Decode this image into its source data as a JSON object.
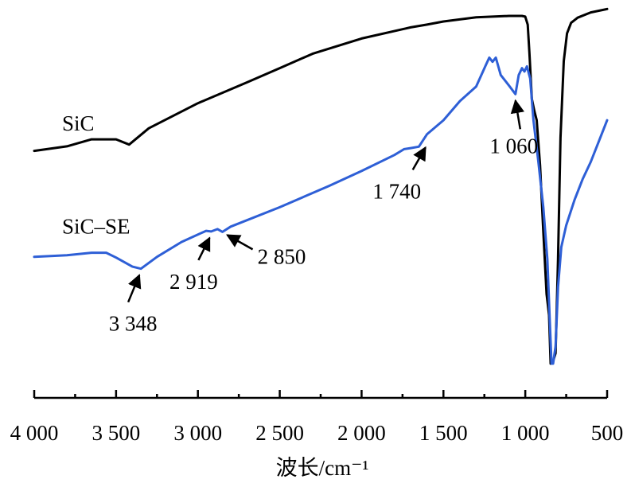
{
  "chart_data": {
    "type": "line",
    "xlabel": "波长/cm⁻¹",
    "xlim": [
      4000,
      500
    ],
    "x_reversed": true,
    "x_tick_values": [
      4000,
      3500,
      3000,
      2500,
      2000,
      1500,
      1000,
      500
    ],
    "x_tick_labels": [
      "4 000",
      "3 500",
      "3 000",
      "2 500",
      "2 000",
      "1 500",
      "1 000",
      "500"
    ],
    "y_axis_shown": false,
    "grid": false,
    "series": [
      {
        "name": "SiC",
        "color": "#000000",
        "points": [
          [
            4000,
            0.612
          ],
          [
            3800,
            0.625
          ],
          [
            3650,
            0.645
          ],
          [
            3500,
            0.645
          ],
          [
            3420,
            0.63
          ],
          [
            3300,
            0.677
          ],
          [
            3000,
            0.749
          ],
          [
            2700,
            0.809
          ],
          [
            2500,
            0.85
          ],
          [
            2300,
            0.891
          ],
          [
            2000,
            0.935
          ],
          [
            1700,
            0.967
          ],
          [
            1600,
            0.975
          ],
          [
            1500,
            0.984
          ],
          [
            1300,
            0.996
          ],
          [
            1100,
            1.0
          ],
          [
            1020,
            1.0
          ],
          [
            1000,
            0.998
          ],
          [
            985,
            0.975
          ],
          [
            975,
            0.895
          ],
          [
            960,
            0.761
          ],
          [
            945,
            0.727
          ],
          [
            930,
            0.7
          ],
          [
            910,
            0.571
          ],
          [
            890,
            0.38
          ],
          [
            870,
            0.2
          ],
          [
            855,
            0.14
          ],
          [
            845,
            0.0
          ],
          [
            835,
            0.0
          ],
          [
            815,
            0.03
          ],
          [
            800,
            0.3
          ],
          [
            785,
            0.65
          ],
          [
            765,
            0.87
          ],
          [
            745,
            0.95
          ],
          [
            720,
            0.98
          ],
          [
            680,
            0.995
          ],
          [
            600,
            1.01
          ],
          [
            500,
            1.02
          ]
        ]
      },
      {
        "name": "SiC–SE",
        "color": "#2e5fd6",
        "points": [
          [
            4000,
            0.307
          ],
          [
            3800,
            0.312
          ],
          [
            3650,
            0.319
          ],
          [
            3560,
            0.319
          ],
          [
            3500,
            0.305
          ],
          [
            3400,
            0.279
          ],
          [
            3348,
            0.273
          ],
          [
            3250,
            0.307
          ],
          [
            3100,
            0.35
          ],
          [
            2950,
            0.382
          ],
          [
            2919,
            0.38
          ],
          [
            2880,
            0.387
          ],
          [
            2850,
            0.379
          ],
          [
            2800,
            0.394
          ],
          [
            2500,
            0.45
          ],
          [
            2200,
            0.511
          ],
          [
            2000,
            0.554
          ],
          [
            1800,
            0.6
          ],
          [
            1740,
            0.617
          ],
          [
            1700,
            0.62
          ],
          [
            1650,
            0.624
          ],
          [
            1600,
            0.66
          ],
          [
            1500,
            0.7
          ],
          [
            1400,
            0.755
          ],
          [
            1300,
            0.797
          ],
          [
            1240,
            0.86
          ],
          [
            1220,
            0.88
          ],
          [
            1200,
            0.868
          ],
          [
            1180,
            0.88
          ],
          [
            1150,
            0.83
          ],
          [
            1100,
            0.8
          ],
          [
            1060,
            0.775
          ],
          [
            1040,
            0.83
          ],
          [
            1020,
            0.85
          ],
          [
            1005,
            0.84
          ],
          [
            990,
            0.855
          ],
          [
            970,
            0.82
          ],
          [
            950,
            0.7
          ],
          [
            920,
            0.58
          ],
          [
            890,
            0.45
          ],
          [
            865,
            0.3
          ],
          [
            850,
            0.12
          ],
          [
            840,
            0.0
          ],
          [
            830,
            0.0
          ],
          [
            815,
            0.05
          ],
          [
            800,
            0.22
          ],
          [
            780,
            0.335
          ],
          [
            750,
            0.398
          ],
          [
            700,
            0.47
          ],
          [
            650,
            0.53
          ],
          [
            600,
            0.58
          ],
          [
            550,
            0.64
          ],
          [
            500,
            0.7
          ]
        ]
      }
    ],
    "series_labels": [
      {
        "text": "SiC",
        "x": 3830,
        "y": 0.67
      },
      {
        "text": "SiC–SE",
        "x": 3830,
        "y": 0.374
      }
    ],
    "annotations": [
      {
        "label": "3 348",
        "x": 3348,
        "y": 0.273
      },
      {
        "label": "2 919",
        "x": 2919,
        "y": 0.38
      },
      {
        "label": "2 850",
        "x": 2850,
        "y": 0.379
      },
      {
        "label": "1 740",
        "x": 1600,
        "y": 0.64
      },
      {
        "label": "1 060",
        "x": 1060,
        "y": 0.775
      }
    ]
  }
}
